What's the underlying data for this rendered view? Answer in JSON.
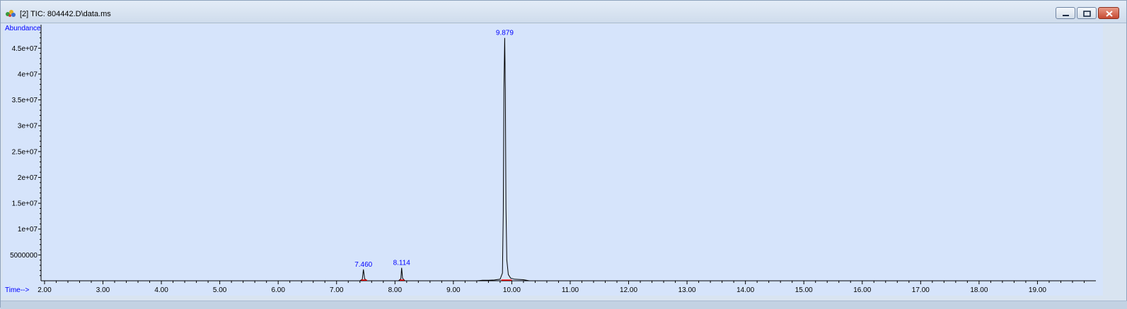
{
  "window": {
    "title": "[2] TIC: 804442.D\\data.ms",
    "icon": "chromatogram-app-icon",
    "buttons": [
      "minimize-icon",
      "restore-icon",
      "close-icon"
    ]
  },
  "colors": {
    "plot_bg": "#d6e4fb",
    "trace": "#000000",
    "label": "#0000ff",
    "baseline_marker": "#ff0000"
  },
  "chart_data": {
    "type": "line",
    "ylabel": "Abundance",
    "xlabel": "Time-->",
    "xlim": [
      1.94,
      20.0
    ],
    "ylim": [
      0,
      49000000.0
    ],
    "x_ticks": [
      2.0,
      3.0,
      4.0,
      5.0,
      6.0,
      7.0,
      8.0,
      9.0,
      10.0,
      11.0,
      12.0,
      13.0,
      14.0,
      15.0,
      16.0,
      17.0,
      18.0,
      19.0
    ],
    "x_tick_labels": [
      "2.00",
      "3.00",
      "4.00",
      "5.00",
      "6.00",
      "7.00",
      "8.00",
      "9.00",
      "10.00",
      "11.00",
      "12.00",
      "13.00",
      "14.00",
      "15.00",
      "16.00",
      "17.00",
      "18.00",
      "19.00"
    ],
    "y_ticks": [
      5000000,
      10000000,
      15000000,
      20000000,
      25000000,
      30000000,
      35000000,
      40000000,
      45000000
    ],
    "y_tick_labels": [
      "5000000",
      "1e+07",
      "1.5e+07",
      "2e+07",
      "2.5e+07",
      "3e+07",
      "3.5e+07",
      "4e+07",
      "4.5e+07"
    ],
    "series": [
      {
        "points": [
          [
            1.94,
            0
          ],
          [
            7.4,
            0
          ],
          [
            7.44,
            300000
          ],
          [
            7.46,
            2200000
          ],
          [
            7.48,
            400000
          ],
          [
            7.52,
            0
          ],
          [
            8.06,
            0
          ],
          [
            8.1,
            400000
          ],
          [
            8.114,
            2500000
          ],
          [
            8.13,
            500000
          ],
          [
            8.17,
            0
          ],
          [
            9.4,
            0
          ],
          [
            9.5,
            100000
          ],
          [
            9.6,
            100000
          ],
          [
            9.7,
            150000
          ],
          [
            9.8,
            300000
          ],
          [
            9.84,
            1500000
          ],
          [
            9.855,
            13500000
          ],
          [
            9.865,
            37000000
          ],
          [
            9.879,
            47000000
          ],
          [
            9.89,
            37000000
          ],
          [
            9.9,
            14000000
          ],
          [
            9.915,
            4000000
          ],
          [
            9.94,
            1200000
          ],
          [
            9.98,
            500000
          ],
          [
            10.05,
            300000
          ],
          [
            10.2,
            200000
          ],
          [
            10.3,
            0
          ],
          [
            20.0,
            0
          ]
        ]
      }
    ],
    "peak_labels": [
      {
        "x": 7.46,
        "y": 2200000,
        "text": "7.460"
      },
      {
        "x": 8.114,
        "y": 2500000,
        "text": "8.114"
      },
      {
        "x": 9.879,
        "y": 47000000,
        "text": "9.879"
      }
    ],
    "baseline_segments": [
      [
        7.42,
        7.52
      ],
      [
        8.08,
        8.16
      ],
      [
        9.82,
        10.0
      ]
    ]
  }
}
